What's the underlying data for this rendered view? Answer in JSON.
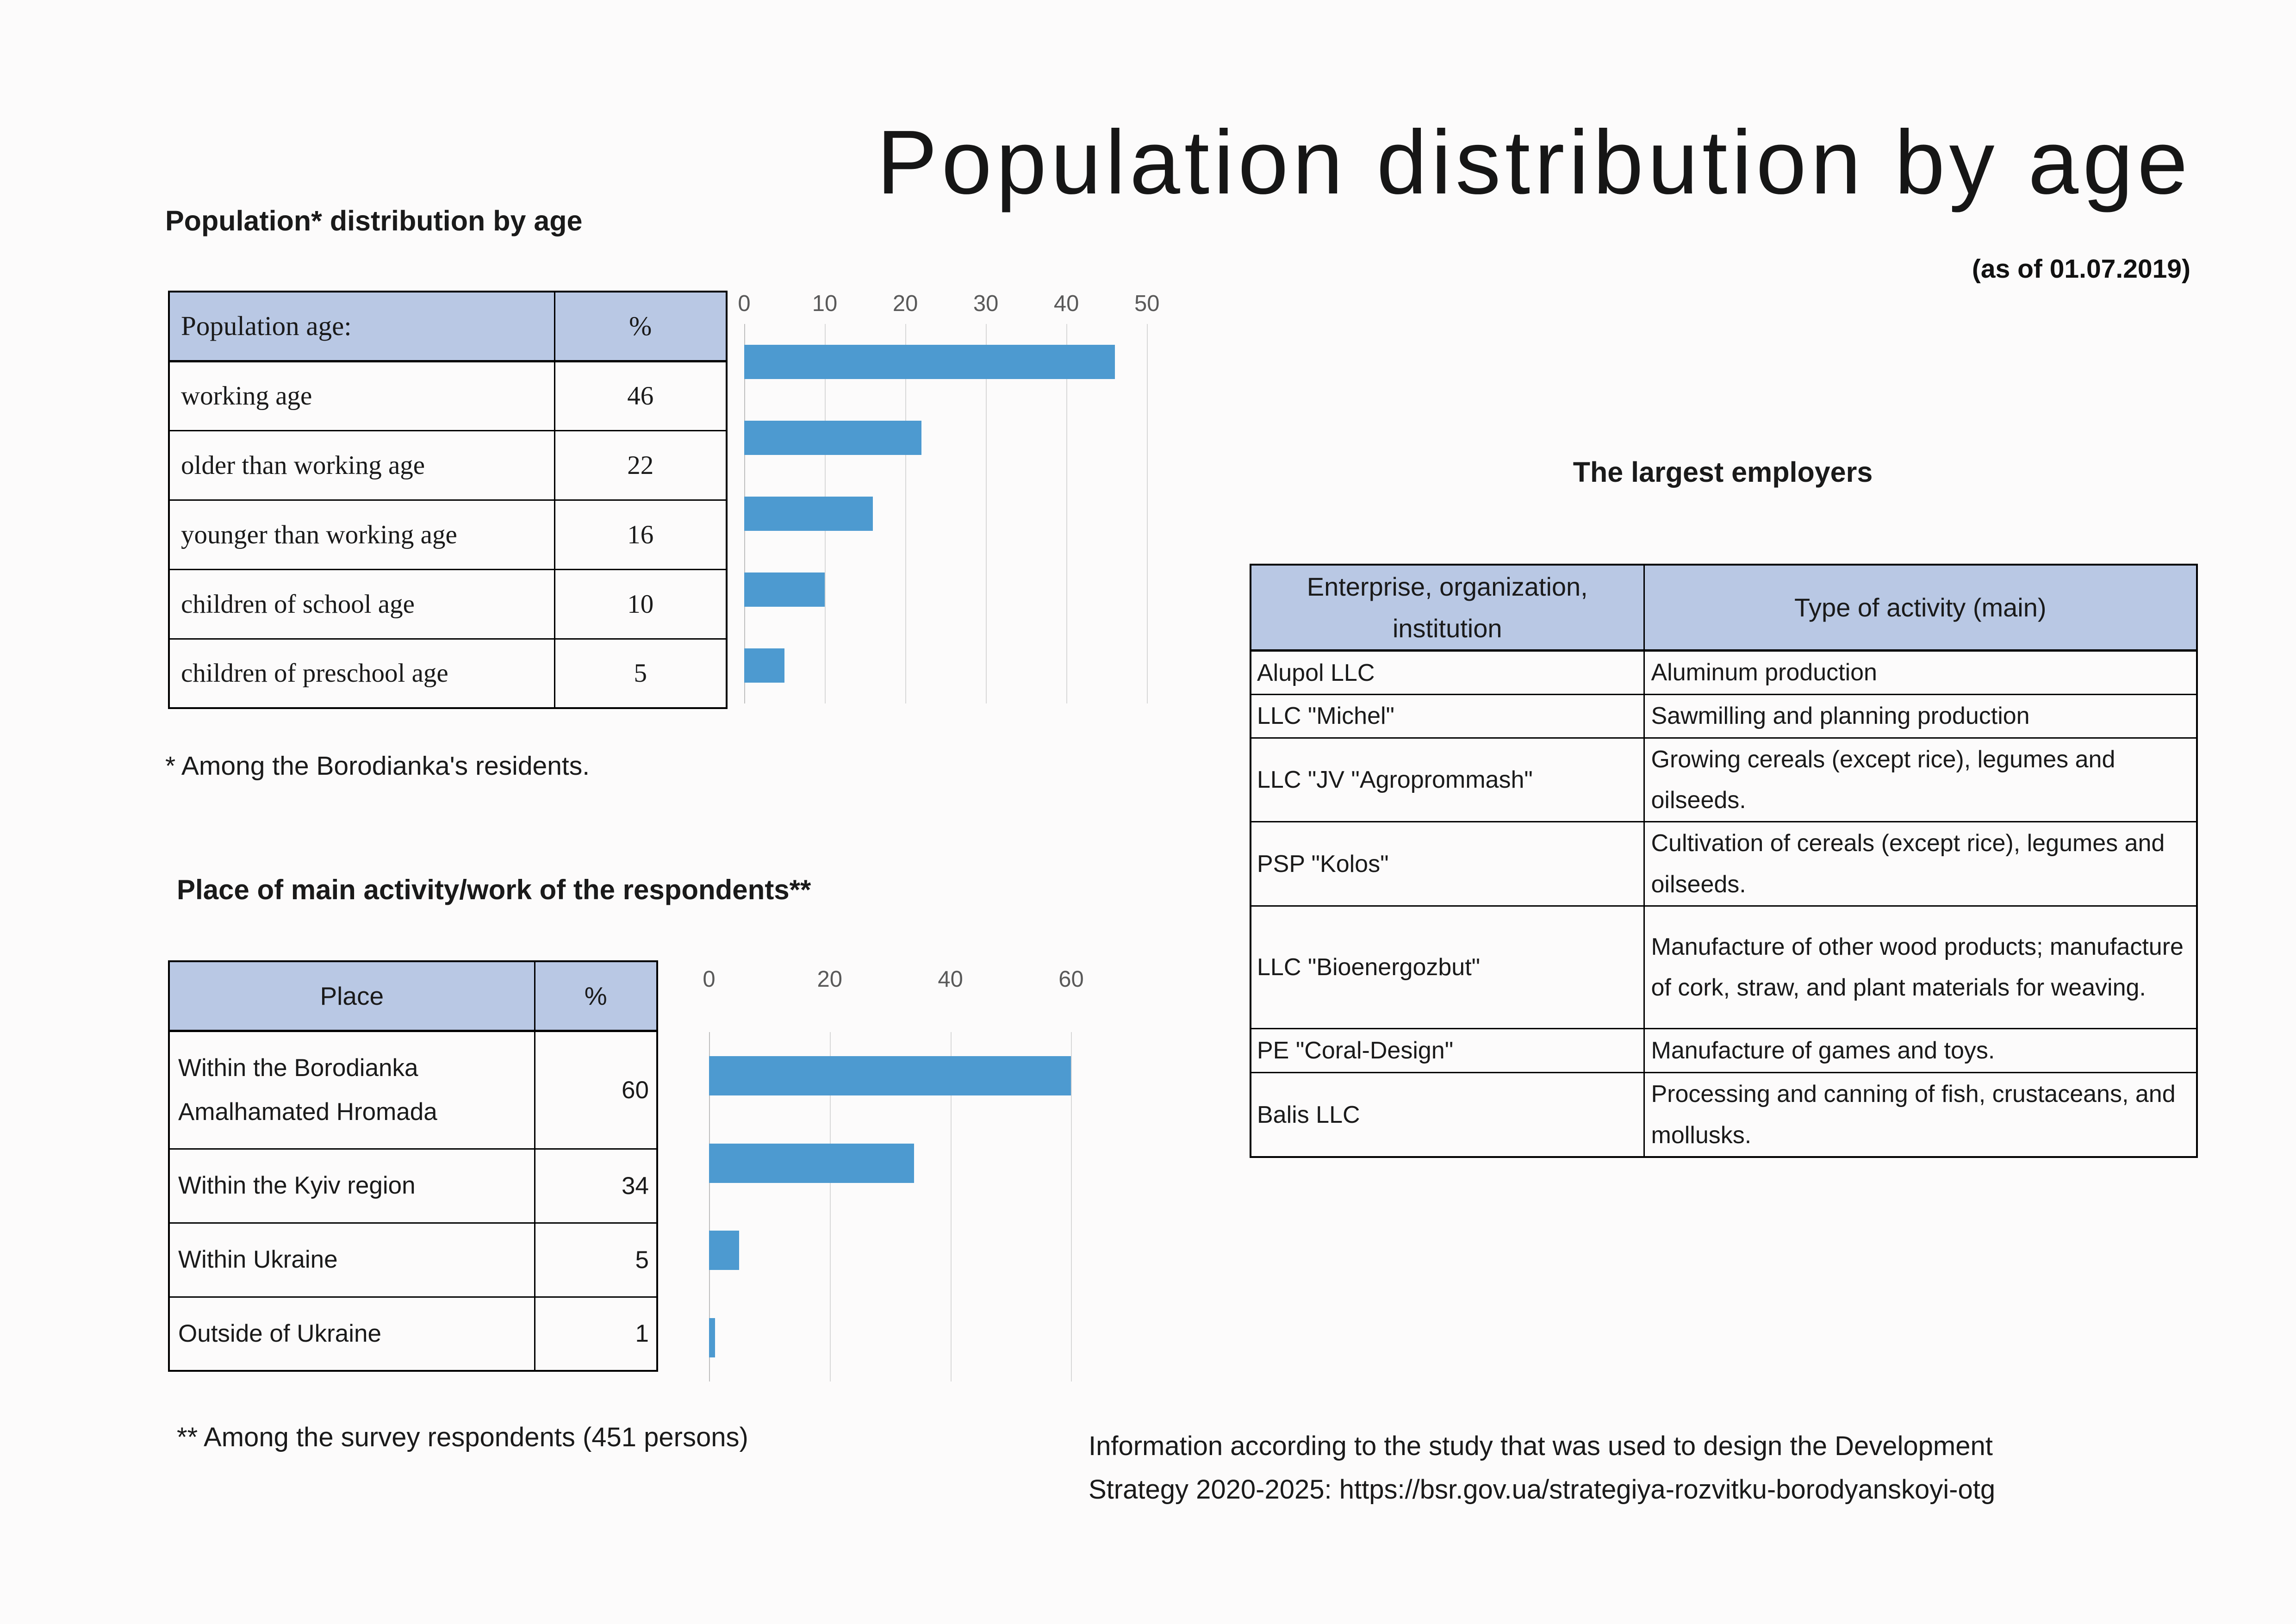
{
  "main_title": "Population distribution by age",
  "date_note": "(as of 01.07.2019)",
  "colors": {
    "bar": "#4D9AD0",
    "table_header_bg": "#B9C8E4",
    "gridline": "#D8D8D8",
    "axis_line": "#BFBFBF",
    "tick_text": "#595959"
  },
  "section_population": {
    "heading": "Population* distribution by age",
    "footnote": "* Among the Borodianka's residents.",
    "table": {
      "header": {
        "label": "Population age:",
        "value": "%"
      },
      "rows": [
        {
          "label": "working age",
          "value": "46"
        },
        {
          "label": "older than working age",
          "value": "22"
        },
        {
          "label": "younger than working age",
          "value": "16"
        },
        {
          "label": "children of school age",
          "value": "10"
        },
        {
          "label": "children of preschool age",
          "value": "5"
        }
      ]
    }
  },
  "section_place": {
    "heading": "Place of main activity/work of the respondents**",
    "footnote": "** Among the survey respondents (451 persons)",
    "table": {
      "header": {
        "label": "Place",
        "value": "%"
      },
      "rows": [
        {
          "label": "Within the Borodianka Amalhamated Hromada",
          "value": "60"
        },
        {
          "label": "Within the Kyiv region",
          "value": "34"
        },
        {
          "label": "Within Ukraine",
          "value": "5"
        },
        {
          "label": "Outside of Ukraine",
          "value": "1"
        }
      ]
    }
  },
  "section_employers": {
    "heading": "The largest employers",
    "table": {
      "header": {
        "enterprise": "Enterprise, organization, institution",
        "activity": "Type of activity (main)"
      },
      "rows": [
        {
          "enterprise": "Alupol LLC",
          "activity": "Aluminum production"
        },
        {
          "enterprise": "LLC \"Michel\"",
          "activity": "Sawmilling and planning production"
        },
        {
          "enterprise": "LLC \"JV \"Agroprommash\"",
          "activity": "Growing cereals (except rice), legumes and oilseeds."
        },
        {
          "enterprise": "PSP \"Kolos\"",
          "activity": "Cultivation of cereals (except rice), legumes and oilseeds."
        },
        {
          "enterprise": "LLC \"Bioenergozbut\"",
          "activity": "Manufacture of other wood products; manufacture of cork, straw, and plant materials for weaving."
        },
        {
          "enterprise": "PE \"Coral-Design\"",
          "activity": "Manufacture of games and toys."
        },
        {
          "enterprise": "Balis LLC",
          "activity": "Processing and canning of fish, crustaceans, and mollusks."
        }
      ]
    }
  },
  "footer": {
    "line1": "Information according to the study that was used to design the Development",
    "line2": "Strategy 2020-2025: https://bsr.gov.ua/strategiya-rozvitku-borodyanskoyi-otg"
  },
  "chart_data": [
    {
      "type": "bar",
      "orientation": "horizontal",
      "title": "",
      "categories": [
        "working age",
        "older than working age",
        "younger than working age",
        "children of school age",
        "children of preschool age"
      ],
      "values": [
        46,
        22,
        16,
        10,
        5
      ],
      "ticks": [
        0,
        10,
        20,
        30,
        40,
        50
      ],
      "xlim": [
        0,
        52.4
      ],
      "grid": true,
      "axis_position": "top",
      "legend": "none"
    },
    {
      "type": "bar",
      "orientation": "horizontal",
      "title": "",
      "categories": [
        "Within the Borodianka Amalhamated Hromada",
        "Within the Kyiv region",
        "Within Ukraine",
        "Outside of Ukraine"
      ],
      "values": [
        60,
        34,
        5,
        1
      ],
      "ticks": [
        0,
        20,
        40,
        60
      ],
      "xlim": [
        0,
        73
      ],
      "grid": true,
      "axis_position": "top",
      "legend": "none"
    }
  ]
}
